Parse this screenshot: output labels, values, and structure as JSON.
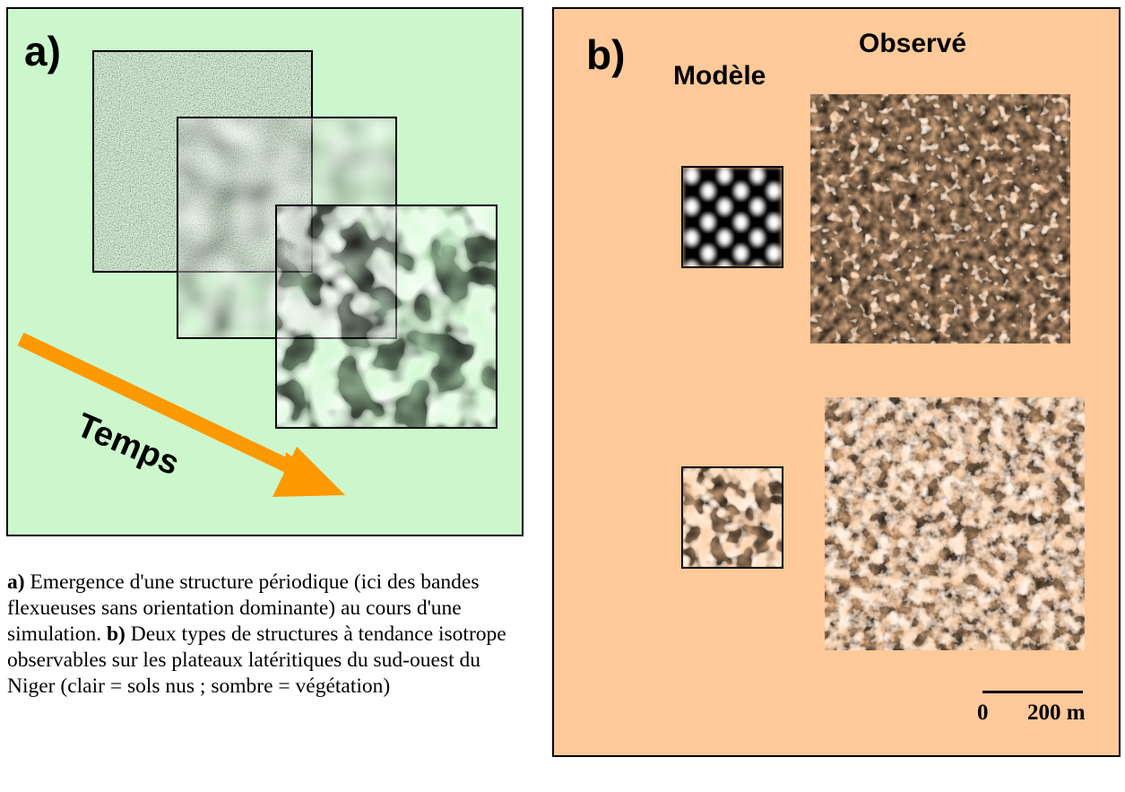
{
  "panel_a": {
    "label": "a)",
    "arrow_label": "Temps",
    "accent_color": "#ff9900",
    "background": "#ccf7cc"
  },
  "panel_b": {
    "label": "b)",
    "heading_model": "Modèle",
    "heading_observed": "Observé",
    "background": "#ffc999",
    "scale_start": "0",
    "scale_end": "200 m"
  },
  "caption": {
    "a_label": "a)",
    "a_text": " Emergence d'une structure périodique (ici des bandes flexueuses sans orientation dominante) au cours d'une simulation. ",
    "b_label": "b)",
    "b_text": " Deux types de structures à tendance isotrope observables sur les plateaux latéritiques du sud-ouest du Niger (clair = sols nus ; sombre = végétation)"
  }
}
